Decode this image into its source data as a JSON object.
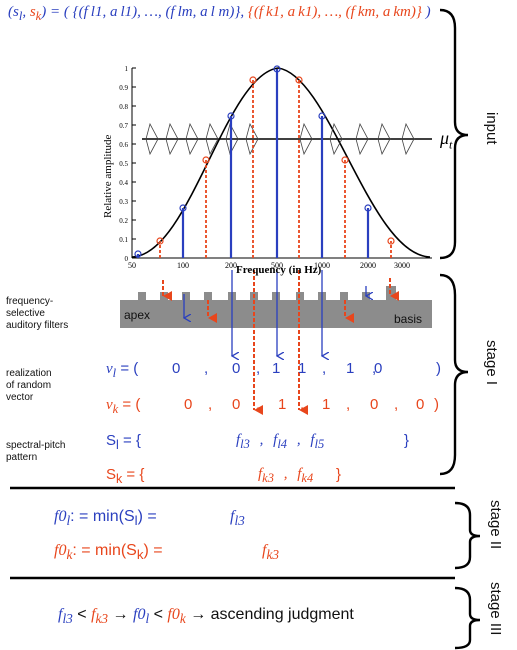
{
  "header": {
    "pair": "(s",
    "sl": "l",
    "comma": ", ",
    "sk_s": "s",
    "sk": "k",
    "close": ") = (",
    "blue_set": "{(f l1, a l1), …, (f lm, a l m)},",
    "red_set": "{(f k1, a k1), …, (f km, a km)}",
    "end": ")"
  },
  "plot": {
    "ylabel": "Relative amplitude",
    "xlabel": "Frequency (in Hz)",
    "yticks": [
      "0",
      "0.1",
      "0.2",
      "0.3",
      "0.4",
      "0.5",
      "0.6",
      "0.7",
      "0.8",
      "0.9",
      "1"
    ],
    "xticks": [
      "50",
      "100",
      "200",
      "500",
      "1000",
      "2000",
      "3000"
    ],
    "mu_label": "μ",
    "mu_sub": "t"
  },
  "filters": {
    "label": [
      "frequency-",
      "selective",
      "auditory filters"
    ],
    "apex": "apex",
    "basis": "basis"
  },
  "vectors": {
    "label": [
      "realization",
      "of random",
      "vector"
    ],
    "vl_name": "v",
    "vl_sub": "l",
    "vl_eq": " = (",
    "vl_vals": [
      "0",
      ",",
      "0",
      ",",
      "1",
      "1",
      ",",
      "1",
      ",",
      "0",
      ")"
    ],
    "vk_name": "v",
    "vk_sub": "k",
    "vk_eq": " = (",
    "vk_vals": [
      "0",
      ",",
      "0",
      ",",
      "1",
      ",",
      "1",
      ",",
      "0",
      ",",
      "0",
      ")"
    ]
  },
  "pattern": {
    "label": [
      "spectral-pitch",
      "pattern"
    ],
    "sl": "S",
    "sl_sub": "l",
    "sl_eq": " =  {",
    "sl_vals": [
      "f",
      "l3",
      ",",
      "f",
      "l4",
      ",",
      "f",
      "l5"
    ],
    "sl_close": "}",
    "sk": "S",
    "sk_sub": "k",
    "sk_eq": " = {",
    "sk_vals": [
      "f",
      "k3",
      ",",
      "f",
      "k4"
    ],
    "sk_close": "}"
  },
  "stage2": {
    "l_lhs": "f0",
    "l_sub": "l",
    "l_mid": ": = min(S",
    "l_mid_sub": "l",
    "l_end": ") =",
    "l_f": "f",
    "l_fsub": "l3",
    "k_lhs": "f0",
    "k_sub": "k",
    "k_mid": ": = min(S",
    "k_mid_sub": "k",
    "k_end": ") =",
    "k_f": "f",
    "k_fsub": "k3"
  },
  "stage3": {
    "f1": "f",
    "f1sub": "l3",
    "lt1": " < ",
    "f2": "f",
    "f2sub": "k3",
    "arrow1": " → ",
    "g1": "f0",
    "g1sub": "l",
    "lt2": " < ",
    "g2": "f0",
    "g2sub": "k",
    "arrow2": " → ",
    "result": "ascending judgment"
  },
  "stages": {
    "input": "input",
    "stage1": "stage I",
    "stage2": "stage II",
    "stage3": "stage III"
  },
  "colors": {
    "blue": "#2a3fbf",
    "red": "#e8461c",
    "bar": "#8c8c8c"
  }
}
